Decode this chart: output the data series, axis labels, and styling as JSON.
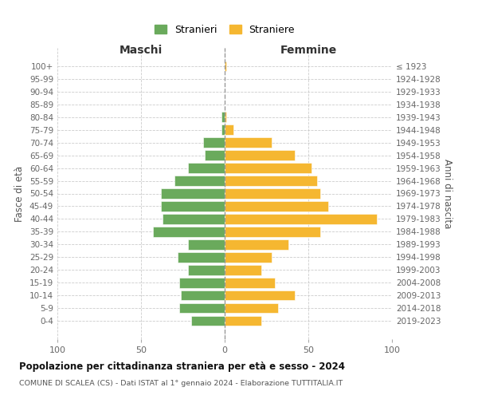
{
  "age_groups": [
    "0-4",
    "5-9",
    "10-14",
    "15-19",
    "20-24",
    "25-29",
    "30-34",
    "35-39",
    "40-44",
    "45-49",
    "50-54",
    "55-59",
    "60-64",
    "65-69",
    "70-74",
    "75-79",
    "80-84",
    "85-89",
    "90-94",
    "95-99",
    "100+"
  ],
  "birth_years": [
    "2019-2023",
    "2014-2018",
    "2009-2013",
    "2004-2008",
    "1999-2003",
    "1994-1998",
    "1989-1993",
    "1984-1988",
    "1979-1983",
    "1974-1978",
    "1969-1973",
    "1964-1968",
    "1959-1963",
    "1954-1958",
    "1949-1953",
    "1944-1948",
    "1939-1943",
    "1934-1938",
    "1929-1933",
    "1924-1928",
    "≤ 1923"
  ],
  "maschi": [
    20,
    27,
    26,
    27,
    22,
    28,
    22,
    43,
    37,
    38,
    38,
    30,
    22,
    12,
    13,
    2,
    2,
    0,
    0,
    0,
    0
  ],
  "femmine": [
    22,
    32,
    42,
    30,
    22,
    28,
    38,
    57,
    91,
    62,
    57,
    55,
    52,
    42,
    28,
    5,
    1,
    0,
    0,
    0,
    1
  ],
  "color_maschi": "#6aaa5c",
  "color_femmine": "#f5b731",
  "title": "Popolazione per cittadinanza straniera per età e sesso - 2024",
  "subtitle": "COMUNE DI SCALEA (CS) - Dati ISTAT al 1° gennaio 2024 - Elaborazione TUTTITALIA.IT",
  "xlabel_left": "Maschi",
  "xlabel_right": "Femmine",
  "ylabel_left": "Fasce di età",
  "ylabel_right": "Anni di nascita",
  "legend_maschi": "Stranieri",
  "legend_femmine": "Straniere",
  "xlim": 100,
  "background_color": "#ffffff",
  "grid_color": "#cccccc"
}
